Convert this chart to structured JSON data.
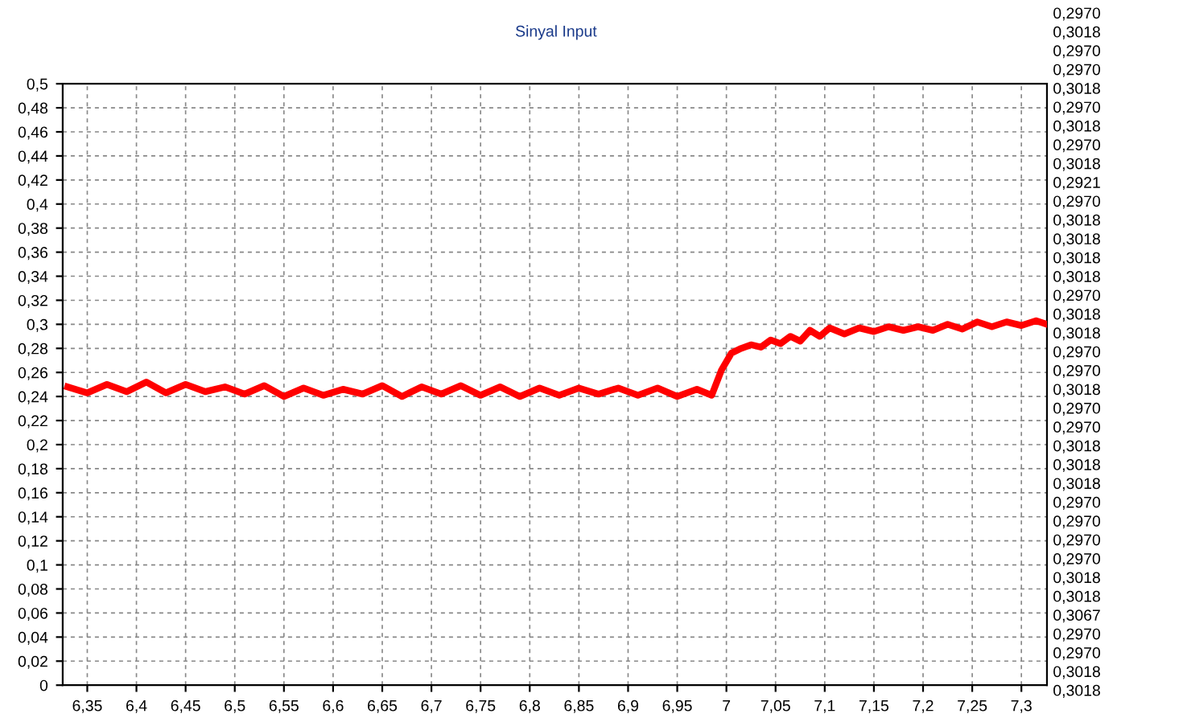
{
  "chart_data": {
    "type": "line",
    "title": "Sinyal Input",
    "x": [
      6.33,
      6.35,
      6.37,
      6.39,
      6.41,
      6.43,
      6.45,
      6.47,
      6.49,
      6.51,
      6.53,
      6.55,
      6.57,
      6.59,
      6.61,
      6.63,
      6.65,
      6.67,
      6.69,
      6.71,
      6.73,
      6.75,
      6.77,
      6.79,
      6.81,
      6.83,
      6.85,
      6.87,
      6.89,
      6.91,
      6.93,
      6.95,
      6.97,
      6.985,
      6.995,
      7.005,
      7.015,
      7.025,
      7.035,
      7.045,
      7.055,
      7.065,
      7.075,
      7.085,
      7.095,
      7.105,
      7.12,
      7.135,
      7.15,
      7.165,
      7.18,
      7.195,
      7.21,
      7.225,
      7.24,
      7.255,
      7.27,
      7.285,
      7.3,
      7.315,
      7.326
    ],
    "series": [
      {
        "color": "#ff0000",
        "values": [
          0.248,
          0.243,
          0.25,
          0.244,
          0.252,
          0.243,
          0.25,
          0.244,
          0.248,
          0.242,
          0.249,
          0.24,
          0.247,
          0.241,
          0.246,
          0.242,
          0.249,
          0.24,
          0.248,
          0.242,
          0.249,
          0.241,
          0.248,
          0.24,
          0.247,
          0.241,
          0.247,
          0.242,
          0.247,
          0.241,
          0.247,
          0.24,
          0.246,
          0.241,
          0.262,
          0.276,
          0.28,
          0.283,
          0.281,
          0.287,
          0.284,
          0.29,
          0.286,
          0.295,
          0.29,
          0.297,
          0.292,
          0.297,
          0.294,
          0.298,
          0.295,
          0.298,
          0.295,
          0.3,
          0.296,
          0.302,
          0.298,
          0.302,
          0.299,
          0.303,
          0.3
        ]
      }
    ],
    "xlim": [
      6.325,
      7.326
    ],
    "xticks": [
      {
        "value": 6.35,
        "label": "6,35"
      },
      {
        "value": 6.4,
        "label": "6,4"
      },
      {
        "value": 6.45,
        "label": "6,45"
      },
      {
        "value": 6.5,
        "label": "6,5"
      },
      {
        "value": 6.55,
        "label": "6,55"
      },
      {
        "value": 6.6,
        "label": "6,6"
      },
      {
        "value": 6.65,
        "label": "6,65"
      },
      {
        "value": 6.7,
        "label": "6,7"
      },
      {
        "value": 6.75,
        "label": "6,75"
      },
      {
        "value": 6.8,
        "label": "6,8"
      },
      {
        "value": 6.85,
        "label": "6,85"
      },
      {
        "value": 6.9,
        "label": "6,9"
      },
      {
        "value": 6.95,
        "label": "6,95"
      },
      {
        "value": 7,
        "label": "7"
      },
      {
        "value": 7.05,
        "label": "7,05"
      },
      {
        "value": 7.1,
        "label": "7,1"
      },
      {
        "value": 7.15,
        "label": "7,15"
      },
      {
        "value": 7.2,
        "label": "7,2"
      },
      {
        "value": 7.25,
        "label": "7,25"
      },
      {
        "value": 7.3,
        "label": "7,3"
      }
    ],
    "ylim": [
      0,
      0.5
    ],
    "yticks": [
      0,
      {
        "value": 0.02,
        "label": "0,02"
      },
      {
        "value": 0.04,
        "label": "0,04"
      },
      {
        "value": 0.06,
        "label": "0,06"
      },
      {
        "value": 0.08,
        "label": "0,08"
      },
      {
        "value": 0.1,
        "label": "0,1"
      },
      {
        "value": 0.12,
        "label": "0,12"
      },
      {
        "value": 0.14,
        "label": "0,14"
      },
      {
        "value": 0.16,
        "label": "0,16"
      },
      {
        "value": 0.18,
        "label": "0,18"
      },
      {
        "value": 0.2,
        "label": "0,2"
      },
      {
        "value": 0.22,
        "label": "0,22"
      },
      {
        "value": 0.24,
        "label": "0,24"
      },
      {
        "value": 0.26,
        "label": "0,26"
      },
      {
        "value": 0.28,
        "label": "0,28"
      },
      {
        "value": 0.3,
        "label": "0,3"
      },
      {
        "value": 0.32,
        "label": "0,32"
      },
      {
        "value": 0.34,
        "label": "0,34"
      },
      {
        "value": 0.36,
        "label": "0,36"
      },
      {
        "value": 0.38,
        "label": "0,38"
      },
      {
        "value": 0.4,
        "label": "0,4"
      },
      {
        "value": 0.42,
        "label": "0,42"
      },
      {
        "value": 0.44,
        "label": "0,44"
      },
      {
        "value": 0.46,
        "label": "0,46"
      },
      {
        "value": 0.48,
        "label": "0,48"
      },
      {
        "value": 0.5,
        "label": "0,5"
      }
    ],
    "grid": true,
    "line_style": "solid",
    "marker": "none",
    "annotations": [
      "0,2970",
      "0,3018",
      "0,2970",
      "0,2970",
      "0,3018",
      "0,2970",
      "0,3018",
      "0,2970",
      "0,3018",
      "0,2921",
      "0,2970",
      "0,3018",
      "0,3018",
      "0,3018",
      "0,3018",
      "0,2970",
      "0,3018",
      "0,3018",
      "0,2970",
      "0,2970",
      "0,3018",
      "0,2970",
      "0,2970",
      "0,3018",
      "0,3018",
      "0,3018",
      "0,2970",
      "0,2970",
      "0,2970",
      "0,2970",
      "0,3018",
      "0,3018",
      "0,3067",
      "0,2970",
      "0,2970",
      "0,3018",
      "0,3018"
    ]
  }
}
